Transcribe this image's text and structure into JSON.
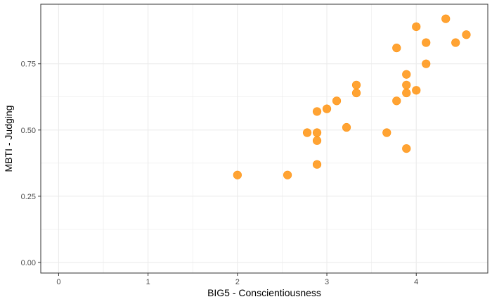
{
  "chart_data": {
    "type": "scatter",
    "title": "",
    "xlabel": "BIG5 - Conscientiousness",
    "ylabel": "MBTI - Judging",
    "xlim": [
      -0.2,
      4.8
    ],
    "ylim": [
      -0.04,
      0.975
    ],
    "x_ticks": [
      0,
      1,
      2,
      3,
      4
    ],
    "x_tick_labels": [
      "0",
      "1",
      "2",
      "3",
      "4"
    ],
    "y_ticks": [
      0,
      0.25,
      0.5,
      0.75
    ],
    "y_tick_labels": [
      "0.00",
      "0.25",
      "0.50",
      "0.75"
    ],
    "grid": true,
    "point_color": "#ff8c00",
    "background": "#ffffff",
    "grid_color": "#ebebeb",
    "points": [
      {
        "x": 2.0,
        "y": 0.33
      },
      {
        "x": 2.56,
        "y": 0.33
      },
      {
        "x": 2.78,
        "y": 0.49
      },
      {
        "x": 2.89,
        "y": 0.57
      },
      {
        "x": 2.89,
        "y": 0.49
      },
      {
        "x": 2.89,
        "y": 0.46
      },
      {
        "x": 2.89,
        "y": 0.37
      },
      {
        "x": 3.0,
        "y": 0.58
      },
      {
        "x": 3.11,
        "y": 0.61
      },
      {
        "x": 3.22,
        "y": 0.51
      },
      {
        "x": 3.33,
        "y": 0.67
      },
      {
        "x": 3.33,
        "y": 0.64
      },
      {
        "x": 3.67,
        "y": 0.49
      },
      {
        "x": 3.78,
        "y": 0.81
      },
      {
        "x": 3.78,
        "y": 0.61
      },
      {
        "x": 3.89,
        "y": 0.71
      },
      {
        "x": 3.89,
        "y": 0.67
      },
      {
        "x": 3.89,
        "y": 0.64
      },
      {
        "x": 3.89,
        "y": 0.43
      },
      {
        "x": 4.0,
        "y": 0.89
      },
      {
        "x": 4.0,
        "y": 0.65
      },
      {
        "x": 4.11,
        "y": 0.83
      },
      {
        "x": 4.11,
        "y": 0.75
      },
      {
        "x": 4.33,
        "y": 0.92
      },
      {
        "x": 4.44,
        "y": 0.83
      },
      {
        "x": 4.56,
        "y": 0.86
      }
    ]
  }
}
